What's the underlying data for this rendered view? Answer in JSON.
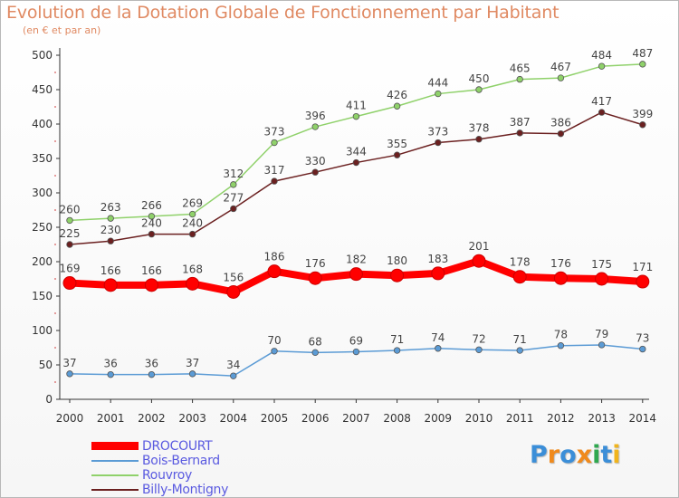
{
  "header": {
    "title": "Evolution de la Dotation Globale de Fonctionnement par Habitant",
    "subtitle": "(en € et par an)"
  },
  "chart_data": {
    "type": "line",
    "title": "Evolution de la Dotation Globale de Fonctionnement par Habitant",
    "subtitle": "(en € et par an)",
    "xlabel": "",
    "ylabel": "",
    "ylim": [
      0,
      500
    ],
    "y_ticks": [
      0,
      50,
      100,
      150,
      200,
      250,
      300,
      350,
      400,
      450,
      500
    ],
    "grid": false,
    "legend_position": "bottom-left",
    "categories": [
      "2000",
      "2001",
      "2002",
      "2003",
      "2004",
      "2005",
      "2006",
      "2007",
      "2008",
      "2009",
      "2010",
      "2011",
      "2012",
      "2013",
      "2014"
    ],
    "series": [
      {
        "name": "DROCOURT",
        "color": "#ff0000",
        "emphasis": true,
        "values": [
          169,
          166,
          166,
          168,
          156,
          186,
          176,
          182,
          180,
          183,
          201,
          178,
          176,
          175,
          171
        ]
      },
      {
        "name": "Bois-Bernard",
        "color": "#5b9bd5",
        "emphasis": false,
        "values": [
          37,
          36,
          36,
          37,
          34,
          70,
          68,
          69,
          71,
          74,
          72,
          71,
          78,
          79,
          73
        ]
      },
      {
        "name": "Rouvroy",
        "color": "#8fd16a",
        "emphasis": false,
        "values": [
          260,
          263,
          266,
          269,
          312,
          373,
          396,
          411,
          426,
          444,
          450,
          465,
          467,
          484,
          487
        ]
      },
      {
        "name": "Billy-Montigny",
        "color": "#6b2020",
        "emphasis": false,
        "values": [
          225,
          230,
          240,
          240,
          277,
          317,
          330,
          344,
          355,
          373,
          378,
          387,
          386,
          417,
          399
        ]
      }
    ]
  },
  "legend": {
    "items": [
      {
        "label": "DROCOURT",
        "color": "#ff0000"
      },
      {
        "label": "Bois-Bernard",
        "color": "#5b9bd5"
      },
      {
        "label": "Rouvroy",
        "color": "#8fd16a"
      },
      {
        "label": "Billy-Montigny",
        "color": "#6b2020"
      }
    ]
  },
  "logo": {
    "letters": [
      {
        "ch": "P",
        "color": "#3b8ed8"
      },
      {
        "ch": "r",
        "color": "#f08a1c"
      },
      {
        "ch": "o",
        "color": "#3b8ed8"
      },
      {
        "ch": "x",
        "color": "#f08a1c"
      },
      {
        "ch": "i",
        "color": "#2fa84f"
      },
      {
        "ch": "t",
        "color": "#3b8ed8"
      },
      {
        "ch": "i",
        "color": "#f0b41c"
      }
    ]
  }
}
